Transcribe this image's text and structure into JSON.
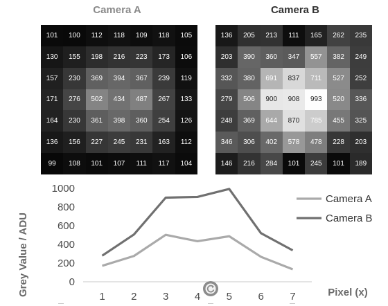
{
  "camera_a": {
    "title": "Camera A",
    "pixels": [
      [
        101,
        100,
        112,
        118,
        109,
        118,
        105
      ],
      [
        130,
        155,
        198,
        216,
        223,
        173,
        106
      ],
      [
        157,
        230,
        369,
        394,
        367,
        239,
        119
      ],
      [
        171,
        276,
        502,
        434,
        487,
        267,
        133
      ],
      [
        164,
        230,
        361,
        398,
        360,
        254,
        126
      ],
      [
        136,
        156,
        227,
        245,
        231,
        163,
        112
      ],
      [
        99,
        108,
        101,
        107,
        111,
        117,
        104
      ]
    ]
  },
  "camera_b": {
    "title": "Camera B",
    "pixels": [
      [
        136,
        205,
        213,
        111,
        165,
        262,
        235
      ],
      [
        203,
        390,
        360,
        347,
        557,
        382,
        249
      ],
      [
        332,
        380,
        691,
        837,
        711,
        527,
        252
      ],
      [
        279,
        506,
        900,
        908,
        993,
        520,
        336
      ],
      [
        248,
        369,
        644,
        870,
        785,
        455,
        325
      ],
      [
        346,
        306,
        402,
        578,
        478,
        228,
        203
      ],
      [
        146,
        216,
        284,
        101,
        245,
        101,
        189
      ]
    ]
  },
  "chart_data": {
    "type": "line",
    "x": [
      1,
      2,
      3,
      4,
      5,
      6,
      7
    ],
    "series": [
      {
        "name": "Camera A",
        "values": [
          171,
          276,
          502,
          434,
          487,
          267,
          133
        ],
        "color": "#aaaaaa"
      },
      {
        "name": "Camera B",
        "values": [
          279,
          506,
          900,
          908,
          993,
          520,
          336
        ],
        "color": "#707070"
      }
    ],
    "xlabel": "Pixel (x)",
    "ylabel": "Grey Value / ADU",
    "ylim": [
      0,
      1000
    ],
    "yticks": [
      0,
      200,
      400,
      600,
      800,
      1000
    ],
    "legend_position": "right",
    "grid": false
  },
  "overlay_icon": "refresh-icon"
}
